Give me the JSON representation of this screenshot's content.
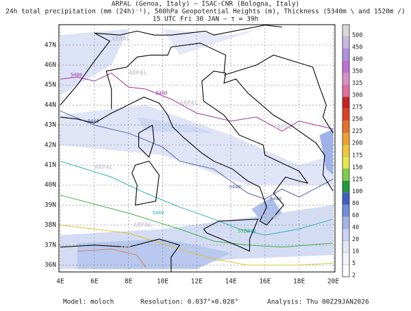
{
  "header": {
    "line1": "ARPAL (Genoa, Italy)  –  ISAC-CNR (Bologna, Italy)",
    "line2": "24h total precipitation (mm (24h)⁻¹), 500hPa Geopotential Heights (m), Thickness (5340m \\ and 1520m /)",
    "line3": "15 UTC Fri 30 JAN  –  τ = 39h"
  },
  "map": {
    "lon_labels": [
      "4E",
      "6E",
      "8E",
      "10E",
      "12E",
      "14E",
      "16E",
      "18E",
      "20E"
    ],
    "lat_labels": [
      "47N",
      "46N",
      "45N",
      "44N",
      "43N",
      "42N",
      "41N",
      "40N",
      "39N",
      "38N",
      "37N",
      "36N"
    ],
    "watermark": "ARPAL",
    "contour_labels": [
      "5400",
      "5400",
      "5440",
      "5440",
      "5440",
      "5480",
      "5480",
      "5520"
    ]
  },
  "colorbar": {
    "labels": [
      "2",
      "5",
      "10",
      "20",
      "40",
      "60",
      "80",
      "100",
      "125",
      "150",
      "175",
      "200",
      "225",
      "250",
      "275",
      "300",
      "325",
      "350",
      "400",
      "450",
      "500"
    ],
    "colors": [
      "#ffffff",
      "#f4f4fb",
      "#e3e6f7",
      "#c9d3f1",
      "#a4b6ea",
      "#6f8fdc",
      "#3f5ec8",
      "#1f9a3a",
      "#7fcf4a",
      "#e8e84a",
      "#f0c83a",
      "#f0a030",
      "#e87028",
      "#e04020",
      "#c82020",
      "#e070a0",
      "#d890c8",
      "#c070d0",
      "#b090e0",
      "#c8b8e0",
      "#d8d8d8"
    ]
  },
  "footer": {
    "model": "Model: moloch",
    "resolution": "Resolution: 0.037°×0.028°",
    "analysis": "Analysis: Thu 00Z29JAN2026"
  }
}
